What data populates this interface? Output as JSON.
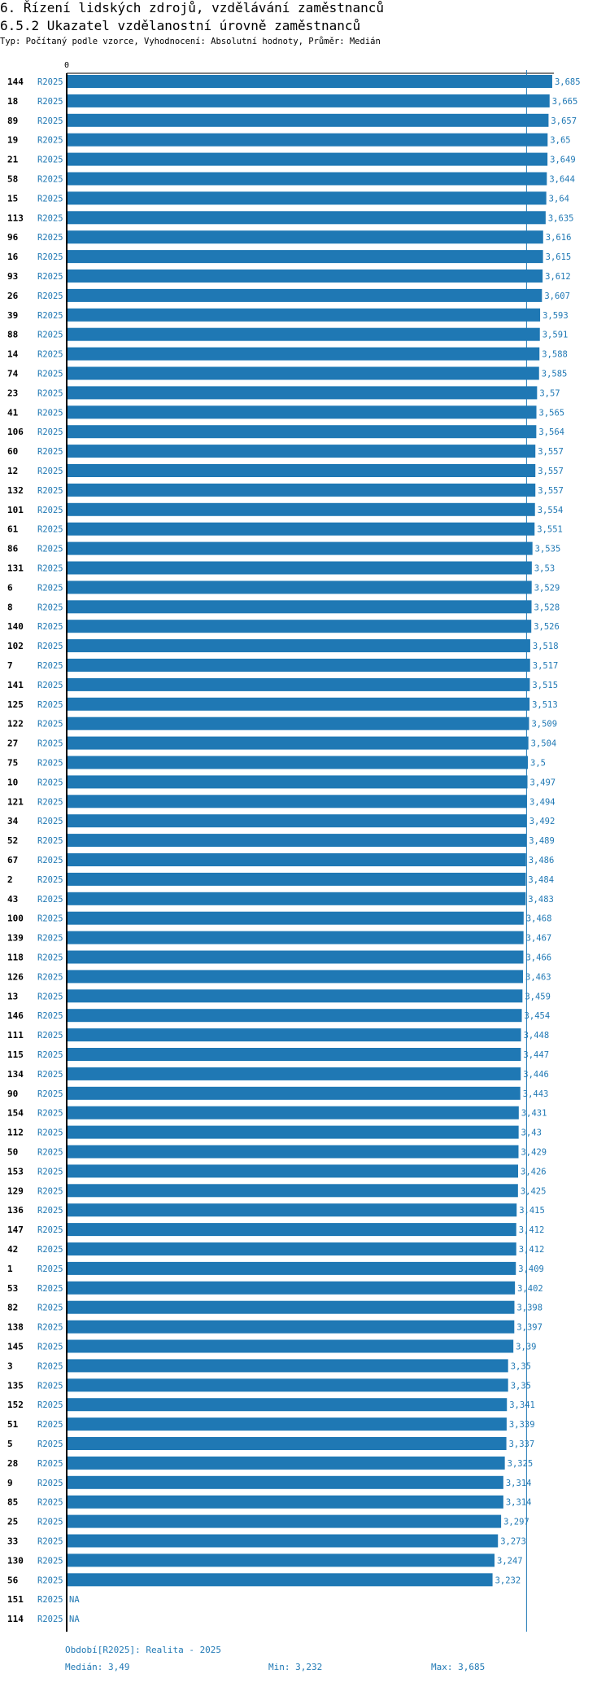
{
  "header": {
    "title": "6. Řízení lidských zdrojů, vzdělávání zaměstnanců",
    "subtitle": "6.5.2 Ukazatel vzdělanostní úrovně zaměstnanců",
    "type_line": "Typ: Počítaný podle vzorce, Vyhodnocení: Absolutní hodnoty, Průměr: Medián"
  },
  "colors": {
    "bar": "#1f78b4",
    "text_blue": "#1f78b4",
    "axis": "#000000"
  },
  "chart_data": {
    "type": "bar",
    "orientation": "horizontal",
    "x_tick_label": "0",
    "period": "R2025",
    "median": 3.49,
    "categories": [
      "144",
      "18",
      "89",
      "19",
      "21",
      "58",
      "15",
      "113",
      "96",
      "16",
      "93",
      "26",
      "39",
      "88",
      "14",
      "74",
      "23",
      "41",
      "106",
      "60",
      "12",
      "132",
      "101",
      "61",
      "86",
      "131",
      "6",
      "8",
      "140",
      "102",
      "7",
      "141",
      "125",
      "122",
      "27",
      "75",
      "10",
      "121",
      "34",
      "52",
      "67",
      "2",
      "43",
      "100",
      "139",
      "118",
      "126",
      "13",
      "146",
      "111",
      "115",
      "134",
      "90",
      "154",
      "112",
      "50",
      "153",
      "129",
      "136",
      "147",
      "42",
      "1",
      "53",
      "82",
      "138",
      "145",
      "3",
      "135",
      "152",
      "51",
      "5",
      "28",
      "9",
      "85",
      "25",
      "33",
      "130",
      "56",
      "151",
      "114"
    ],
    "values": [
      3.685,
      3.665,
      3.657,
      3.65,
      3.649,
      3.644,
      3.64,
      3.635,
      3.616,
      3.615,
      3.612,
      3.607,
      3.593,
      3.591,
      3.588,
      3.585,
      3.57,
      3.565,
      3.564,
      3.557,
      3.557,
      3.557,
      3.554,
      3.551,
      3.535,
      3.53,
      3.529,
      3.528,
      3.526,
      3.518,
      3.517,
      3.515,
      3.513,
      3.509,
      3.504,
      3.5,
      3.497,
      3.494,
      3.492,
      3.489,
      3.486,
      3.484,
      3.483,
      3.468,
      3.467,
      3.466,
      3.463,
      3.459,
      3.454,
      3.448,
      3.447,
      3.446,
      3.443,
      3.431,
      3.43,
      3.429,
      3.426,
      3.425,
      3.415,
      3.412,
      3.412,
      3.409,
      3.402,
      3.398,
      3.397,
      3.39,
      3.35,
      3.35,
      3.341,
      3.339,
      3.337,
      3.325,
      3.314,
      3.314,
      3.297,
      3.273,
      3.247,
      3.232,
      null,
      null
    ],
    "value_labels": [
      "3,685",
      "3,665",
      "3,657",
      "3,65",
      "3,649",
      "3,644",
      "3,64",
      "3,635",
      "3,616",
      "3,615",
      "3,612",
      "3,607",
      "3,593",
      "3,591",
      "3,588",
      "3,585",
      "3,57",
      "3,565",
      "3,564",
      "3,557",
      "3,557",
      "3,557",
      "3,554",
      "3,551",
      "3,535",
      "3,53",
      "3,529",
      "3,528",
      "3,526",
      "3,518",
      "3,517",
      "3,515",
      "3,513",
      "3,509",
      "3,504",
      "3,5",
      "3,497",
      "3,494",
      "3,492",
      "3,489",
      "3,486",
      "3,484",
      "3,483",
      "3,468",
      "3,467",
      "3,466",
      "3,463",
      "3,459",
      "3,454",
      "3,448",
      "3,447",
      "3,446",
      "3,443",
      "3,431",
      "3,43",
      "3,429",
      "3,426",
      "3,425",
      "3,415",
      "3,412",
      "3,412",
      "3,409",
      "3,402",
      "3,398",
      "3,397",
      "3,39",
      "3,35",
      "3,35",
      "3,341",
      "3,339",
      "3,337",
      "3,325",
      "3,314",
      "3,314",
      "3,297",
      "3,273",
      "3,247",
      "3,232",
      "NA",
      "NA"
    ]
  },
  "footer": {
    "period_line": "Období[R2025]: Realita - 2025",
    "median": "Medián: 3,49",
    "min": "Min: 3,232",
    "max": "Max: 3,685"
  }
}
